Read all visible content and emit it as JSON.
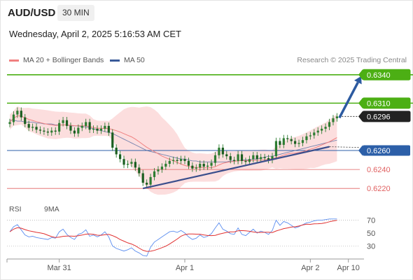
{
  "header": {
    "symbol": "AUD/USD",
    "timeframe": "30 MIN",
    "datetime": "Wednesday, April 2, 2025 5:16:53 AM CET"
  },
  "legend": {
    "ma20": "MA 20 + Bollinger Bands",
    "ma50": "MA 50",
    "credit": "Research © 2025 Trading Central"
  },
  "rsi_legend": {
    "rsi": "RSI",
    "ma9": "9MA"
  },
  "colors": {
    "candle": "#2e7d32",
    "ma20": "#f08080",
    "bollinger_fill": "#fbd3d3",
    "ma50": "#3a5a99",
    "trendline": "#3a4e8c",
    "resistance": "#4caf14",
    "support_blue": "#2c5fa8",
    "support_red": "#e06060",
    "current": "#222222",
    "rsi": "#5b8def",
    "rsi_ma": "#e03030",
    "arrow": "#2c5aa0"
  },
  "chart_data": {
    "type": "candlestick",
    "ylim": [
      0.6212,
      0.6345
    ],
    "x_ticks": [
      "Mar 31",
      "Apr 1",
      "Apr 2",
      "Apr 10"
    ],
    "x_tick_index": [
      13,
      46,
      79,
      89
    ],
    "n_slots": 93,
    "close": [
      0.629,
      0.6298,
      0.6302,
      0.6295,
      0.6288,
      0.6284,
      0.6285,
      0.6282,
      0.6281,
      0.628,
      0.6279,
      0.6281,
      0.628,
      0.6289,
      0.6292,
      0.6286,
      0.6281,
      0.6278,
      0.6284,
      0.6286,
      0.629,
      0.6282,
      0.6283,
      0.6281,
      0.6283,
      0.6286,
      0.6279,
      0.6263,
      0.6256,
      0.6251,
      0.6245,
      0.6246,
      0.6248,
      0.6242,
      0.6236,
      0.6226,
      0.6224,
      0.6232,
      0.6238,
      0.624,
      0.6243,
      0.6246,
      0.6249,
      0.625,
      0.6249,
      0.6251,
      0.6249,
      0.6244,
      0.6241,
      0.6242,
      0.6246,
      0.6243,
      0.6244,
      0.6247,
      0.6255,
      0.6263,
      0.6256,
      0.6254,
      0.625,
      0.6249,
      0.6256,
      0.6249,
      0.6248,
      0.6251,
      0.6255,
      0.6251,
      0.6253,
      0.6252,
      0.625,
      0.6254,
      0.627,
      0.6266,
      0.6273,
      0.6272,
      0.627,
      0.6267,
      0.6268,
      0.6271,
      0.6275,
      0.6276,
      0.6279,
      0.6281,
      0.6283,
      0.6285,
      0.629,
      0.6294,
      0.6296
    ],
    "open": [
      0.6288,
      0.629,
      0.6298,
      0.6302,
      0.6295,
      0.6288,
      0.6284,
      0.6285,
      0.6282,
      0.6281,
      0.628,
      0.6279,
      0.6281,
      0.628,
      0.6289,
      0.6292,
      0.6286,
      0.6281,
      0.6278,
      0.6284,
      0.6286,
      0.629,
      0.6282,
      0.6283,
      0.6281,
      0.6283,
      0.6286,
      0.6279,
      0.6263,
      0.6256,
      0.6251,
      0.6245,
      0.6246,
      0.6248,
      0.6242,
      0.6236,
      0.6226,
      0.6224,
      0.6232,
      0.6238,
      0.624,
      0.6243,
      0.6246,
      0.6249,
      0.625,
      0.6249,
      0.6251,
      0.6249,
      0.6244,
      0.6241,
      0.6242,
      0.6246,
      0.6243,
      0.6244,
      0.6247,
      0.6255,
      0.6263,
      0.6256,
      0.6254,
      0.625,
      0.6249,
      0.6256,
      0.6249,
      0.6248,
      0.6251,
      0.6255,
      0.6251,
      0.6253,
      0.6252,
      0.625,
      0.6254,
      0.627,
      0.6266,
      0.6273,
      0.6272,
      0.627,
      0.6267,
      0.6268,
      0.6271,
      0.6275,
      0.6276,
      0.6279,
      0.6281,
      0.6283,
      0.6285,
      0.629,
      0.6294
    ],
    "ma50": [
      0.6292,
      0.6292,
      0.6291,
      0.6291,
      0.629,
      0.629,
      0.629,
      0.6289,
      0.6289,
      0.6288,
      0.6288,
      0.6288,
      0.6287,
      0.6287,
      0.6287,
      0.6287,
      0.6286,
      0.6286,
      0.6286,
      0.6285,
      0.6285,
      0.6284,
      0.6283,
      0.6282,
      0.6281,
      0.628,
      0.6279,
      0.6278,
      0.6276,
      0.6274,
      0.6272,
      0.627,
      0.6268,
      0.6266,
      0.6264,
      0.6262,
      0.626,
      0.6259,
      0.6258,
      0.6257,
      0.6256,
      0.6255,
      0.6254,
      0.6253,
      0.6252,
      0.6251,
      0.6251,
      0.625,
      0.6249,
      0.6249,
      0.6248,
      0.6248,
      0.6248,
      0.6248,
      0.6248,
      0.6248,
      0.6248,
      0.6248,
      0.6249,
      0.6249,
      0.6249,
      0.625,
      0.625,
      0.625,
      0.6251,
      0.6251,
      0.6252,
      0.6253,
      0.6254,
      0.6254,
      0.6255,
      0.6256,
      0.6257,
      0.6258,
      0.6259,
      0.626,
      0.6261,
      0.6262,
      0.6263,
      0.6264,
      0.6265,
      0.6266,
      0.6267,
      0.6268,
      0.6269,
      0.627,
      0.6271
    ],
    "rsi": [
      52,
      60,
      63,
      55,
      47,
      44,
      45,
      43,
      42,
      41,
      40,
      43,
      42,
      52,
      56,
      48,
      43,
      40,
      48,
      50,
      55,
      45,
      47,
      44,
      47,
      52,
      44,
      30,
      26,
      24,
      22,
      24,
      27,
      22,
      19,
      15,
      14,
      28,
      36,
      40,
      44,
      48,
      52,
      53,
      51,
      54,
      50,
      44,
      40,
      42,
      47,
      43,
      45,
      49,
      58,
      66,
      56,
      53,
      49,
      48,
      58,
      48,
      46,
      51,
      56,
      50,
      53,
      51,
      48,
      54,
      70,
      62,
      68,
      66,
      62,
      58,
      60,
      63,
      66,
      67,
      69,
      70,
      70,
      71,
      72,
      72,
      72
    ],
    "rsi_ticks": [
      70,
      50,
      30
    ],
    "levels": [
      {
        "value": 0.634,
        "label": "0.6340",
        "kind": "resistance"
      },
      {
        "value": 0.631,
        "label": "0.6310",
        "kind": "resistance"
      },
      {
        "value": 0.6296,
        "label": "0.6296",
        "kind": "current"
      },
      {
        "value": 0.626,
        "label": "0.6260",
        "kind": "support_blue"
      },
      {
        "value": 0.624,
        "label": "0.6240",
        "kind": "support_red"
      },
      {
        "value": 0.622,
        "label": "0.6220",
        "kind": "support_red"
      }
    ],
    "trendline": {
      "from": [
        35,
        0.622
      ],
      "to": [
        84,
        0.6264
      ]
    },
    "forecast_arrow": {
      "from": [
        87,
        0.6296
      ],
      "to": [
        92,
        0.634
      ]
    }
  }
}
